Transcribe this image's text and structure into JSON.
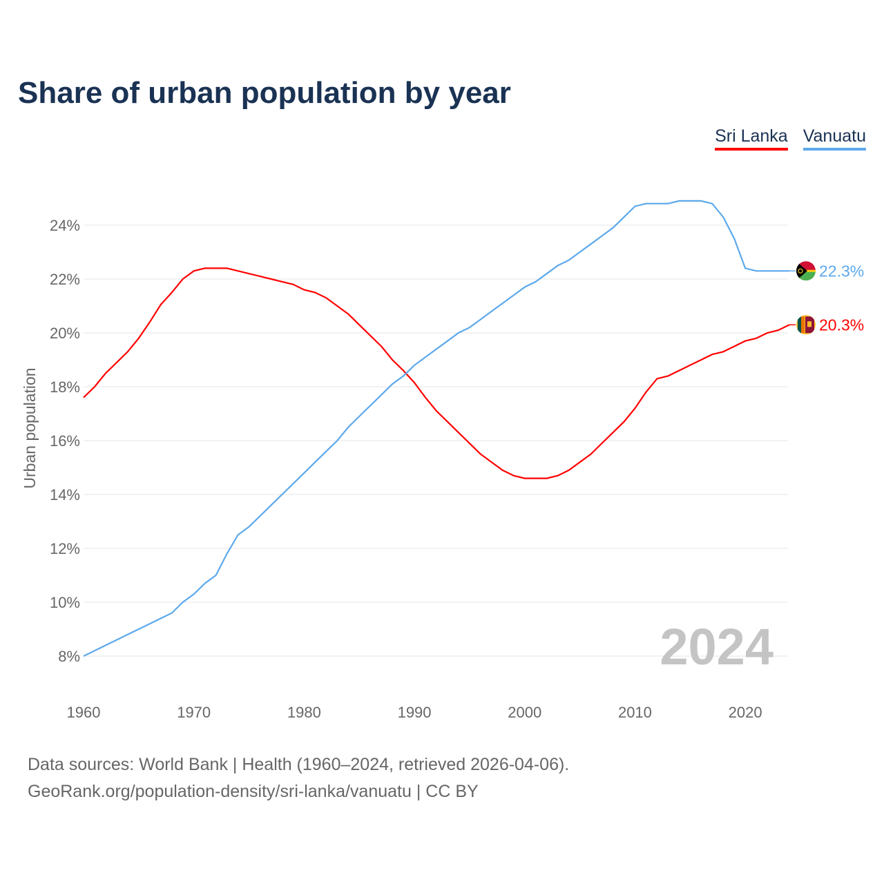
{
  "chart_data": {
    "type": "line",
    "title": "Share of urban population by year",
    "xlabel": "",
    "ylabel": "Urban population",
    "xlim": [
      1960,
      2024
    ],
    "ylim": [
      7,
      25.5
    ],
    "x_ticks": [
      1960,
      1970,
      1980,
      1990,
      2000,
      2010,
      2020
    ],
    "y_ticks": [
      8,
      10,
      12,
      14,
      16,
      18,
      20,
      22,
      24
    ],
    "y_tick_labels": [
      "8%",
      "10%",
      "12%",
      "14%",
      "16%",
      "18%",
      "20%",
      "22%",
      "24%"
    ],
    "x": [
      1960,
      1961,
      1962,
      1963,
      1964,
      1965,
      1966,
      1967,
      1968,
      1969,
      1970,
      1971,
      1972,
      1973,
      1974,
      1975,
      1976,
      1977,
      1978,
      1979,
      1980,
      1981,
      1982,
      1983,
      1984,
      1985,
      1986,
      1987,
      1988,
      1989,
      1990,
      1991,
      1992,
      1993,
      1994,
      1995,
      1996,
      1997,
      1998,
      1999,
      2000,
      2001,
      2002,
      2003,
      2004,
      2005,
      2006,
      2007,
      2008,
      2009,
      2010,
      2011,
      2012,
      2013,
      2014,
      2015,
      2016,
      2017,
      2018,
      2019,
      2020,
      2021,
      2022,
      2023,
      2024
    ],
    "series": [
      {
        "name": "Sri Lanka",
        "color": "#ff0000",
        "end_label": "20.3%",
        "flag": "sri-lanka",
        "values": [
          17.6,
          18.0,
          18.5,
          18.9,
          19.3,
          19.8,
          20.4,
          21.05,
          21.5,
          22.0,
          22.3,
          22.4,
          22.4,
          22.4,
          22.3,
          22.2,
          22.1,
          22.0,
          21.9,
          21.8,
          21.6,
          21.5,
          21.3,
          21.0,
          20.7,
          20.3,
          19.9,
          19.5,
          19.0,
          18.6,
          18.15,
          17.6,
          17.1,
          16.7,
          16.3,
          15.9,
          15.5,
          15.2,
          14.9,
          14.7,
          14.6,
          14.6,
          14.6,
          14.7,
          14.9,
          15.2,
          15.5,
          15.9,
          16.3,
          16.7,
          17.2,
          17.8,
          18.3,
          18.4,
          18.6,
          18.8,
          19.0,
          19.2,
          19.3,
          19.5,
          19.7,
          19.8,
          20.0,
          20.1,
          20.3
        ]
      },
      {
        "name": "Vanuatu",
        "color": "#5ca8ec",
        "end_label": "22.3%",
        "flag": "vanuatu",
        "values": [
          8.0,
          8.2,
          8.4,
          8.6,
          8.8,
          9.0,
          9.2,
          9.4,
          9.6,
          10.0,
          10.3,
          10.7,
          11.0,
          11.8,
          12.5,
          12.8,
          13.2,
          13.6,
          14.0,
          14.4,
          14.8,
          15.2,
          15.6,
          16.0,
          16.5,
          16.9,
          17.3,
          17.7,
          18.1,
          18.4,
          18.8,
          19.1,
          19.4,
          19.7,
          20.0,
          20.2,
          20.5,
          20.8,
          21.1,
          21.4,
          21.7,
          21.9,
          22.2,
          22.5,
          22.7,
          23.0,
          23.3,
          23.6,
          23.9,
          24.3,
          24.7,
          24.8,
          24.8,
          24.8,
          24.9,
          24.9,
          24.9,
          24.8,
          24.3,
          23.5,
          22.4,
          22.3,
          22.3,
          22.3,
          22.3
        ]
      }
    ],
    "year_watermark": "2024",
    "legend_position": "top-right",
    "grid": true
  },
  "footer": {
    "line1": "Data sources: World Bank | Health (1960–2024, retrieved 2026-04-06).",
    "line2": "GeoRank.org/population-density/sri-lanka/vanuatu | CC BY"
  }
}
